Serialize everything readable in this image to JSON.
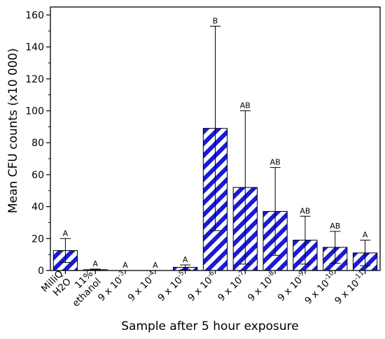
{
  "chart_data": {
    "type": "bar",
    "xlabel": "Sample after 5 hour exposure",
    "ylabel": "Mean CFU counts (x10 000)",
    "ylim": [
      0,
      165
    ],
    "yticks": [
      0,
      20,
      40,
      60,
      80,
      100,
      120,
      140,
      160
    ],
    "grid": false,
    "bar_fill": "hatched",
    "colors": {
      "bar": "#1a1ad6",
      "bar_background": "#ffffff",
      "axis": "#000000"
    },
    "categories": [
      {
        "line1": "MilliQ",
        "line2": "H2O",
        "base": "",
        "exp": ""
      },
      {
        "line1": "11%",
        "line2": "ethanol",
        "base": "",
        "exp": ""
      },
      {
        "line1": "",
        "line2": "",
        "base": "9 x 10",
        "exp": "-3"
      },
      {
        "line1": "",
        "line2": "",
        "base": "9 x 10",
        "exp": "-4"
      },
      {
        "line1": "",
        "line2": "",
        "base": "9 x 10",
        "exp": "-5"
      },
      {
        "line1": "",
        "line2": "",
        "base": "9 x 10",
        "exp": "-6"
      },
      {
        "line1": "",
        "line2": "",
        "base": "9 x 10",
        "exp": "-7"
      },
      {
        "line1": "",
        "line2": "",
        "base": "9 x 10",
        "exp": "-8"
      },
      {
        "line1": "",
        "line2": "",
        "base": "9 x 10",
        "exp": "-9"
      },
      {
        "line1": "",
        "line2": "",
        "base": "9 x 10",
        "exp": "-10"
      },
      {
        "line1": "",
        "line2": "",
        "base": "9 x 10",
        "exp": "-11"
      }
    ],
    "values": [
      12.5,
      0.5,
      0,
      0,
      2.0,
      89,
      52,
      37,
      19,
      14.5,
      11
    ],
    "errors": [
      7.5,
      0.4,
      0,
      0,
      1.5,
      64,
      48,
      27.5,
      15,
      10,
      8
    ],
    "significance": [
      "A",
      "A",
      "A",
      "A",
      "A",
      "B",
      "AB",
      "AB",
      "AB",
      "AB",
      "A"
    ]
  }
}
